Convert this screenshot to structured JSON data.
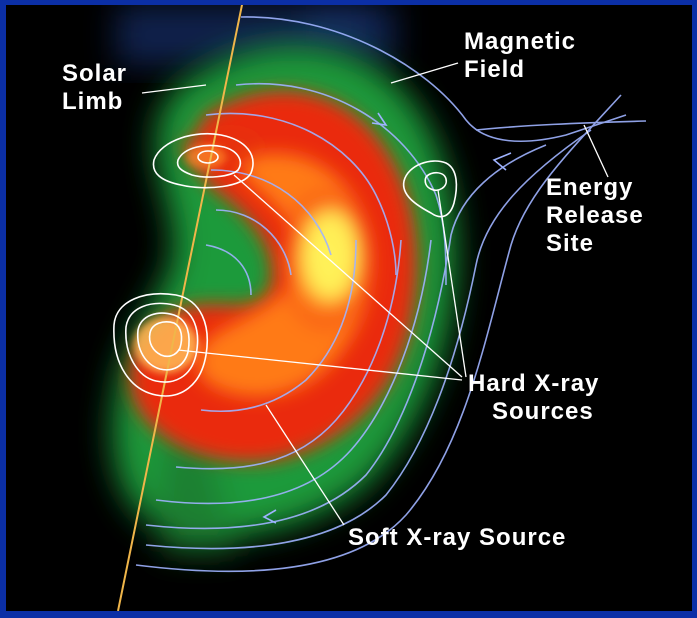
{
  "labels": {
    "solar_limb": [
      "Solar",
      "Limb"
    ],
    "magnetic_field": [
      "Magnetic",
      "Field"
    ],
    "energy_release_site": [
      "Energy",
      "Release",
      "Site"
    ],
    "hard_xray_sources": [
      "Hard X-ray",
      "Sources"
    ],
    "soft_xray_source": "Soft X-ray Source"
  },
  "colors": {
    "frame": "#0b2fa6",
    "background": "#000000",
    "field_lines": "#9fb3ff",
    "limb_line": "#f0b64a",
    "contours": "#ffffff",
    "emission_core": "#fff45a",
    "emission_mid": "#ff3a12",
    "emission_outer": "#22a83a"
  }
}
